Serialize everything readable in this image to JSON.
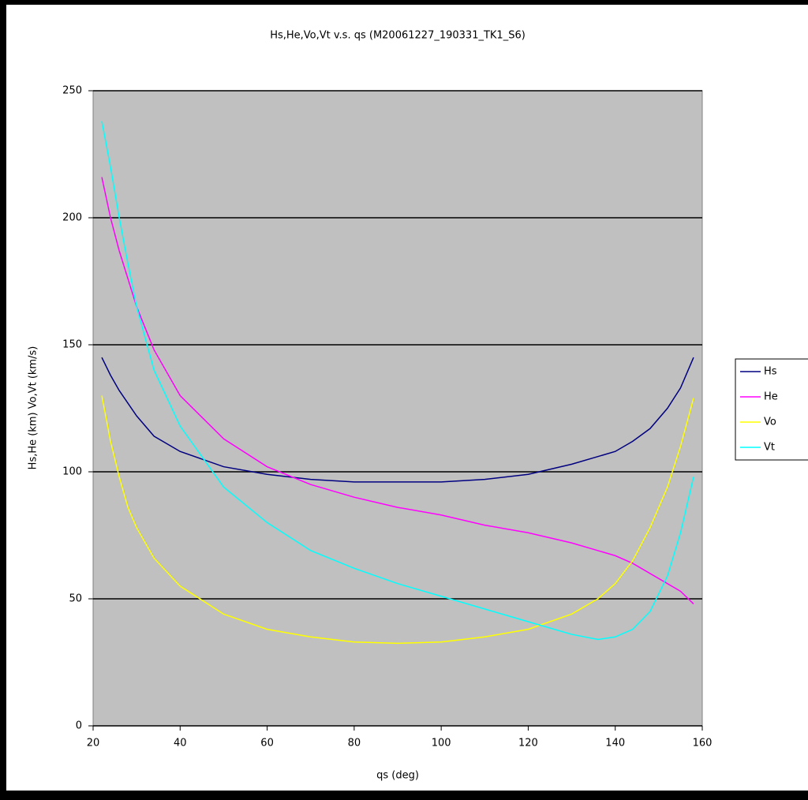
{
  "chart_data": {
    "type": "line",
    "title": "Hs,He,Vo,Vt v.s. qs (M20061227_190331_TK1_S6)",
    "x_label": "qs (deg)",
    "y_label": "Hs,He (km)   Vo,Vt (km/s)",
    "x": [
      22,
      24,
      26,
      28,
      30,
      34,
      40,
      50,
      60,
      70,
      80,
      90,
      100,
      110,
      120,
      130,
      136,
      140,
      144,
      148,
      152,
      155,
      158
    ],
    "series": [
      {
        "name": "Hs",
        "color": "#000080",
        "values": [
          145,
          138,
          132,
          127,
          122,
          114,
          108,
          102,
          99,
          97,
          96,
          96,
          96,
          97,
          99,
          103,
          106,
          108,
          112,
          117,
          125,
          133,
          145
        ]
      },
      {
        "name": "He",
        "color": "#ff00ff",
        "values": [
          216,
          200,
          187,
          176,
          165,
          148,
          130,
          113,
          102,
          95,
          90,
          86,
          83,
          79,
          76,
          72,
          69,
          67,
          64,
          60,
          56,
          53,
          48
        ]
      },
      {
        "name": "Vo",
        "color": "#ffff00",
        "values": [
          130,
          112,
          98,
          86,
          78,
          66,
          55,
          44,
          38,
          35,
          33,
          32.5,
          33,
          35,
          38,
          44,
          50,
          56,
          65,
          78,
          94,
          110,
          129
        ]
      },
      {
        "name": "Vt",
        "color": "#00ffff",
        "values": [
          238,
          220,
          200,
          182,
          165,
          140,
          118,
          94,
          80,
          69,
          62,
          56,
          51,
          46,
          41,
          36,
          34,
          35,
          38,
          45,
          59,
          76,
          98
        ]
      }
    ],
    "xlim": [
      20,
      160
    ],
    "xticks": [
      20,
      40,
      60,
      80,
      100,
      120,
      140,
      160
    ],
    "ylim": [
      0,
      250
    ],
    "yticks": [
      0,
      50,
      100,
      150,
      200,
      250
    ],
    "grid": true,
    "legend": "right",
    "plot_background": "#c0c0c0"
  }
}
